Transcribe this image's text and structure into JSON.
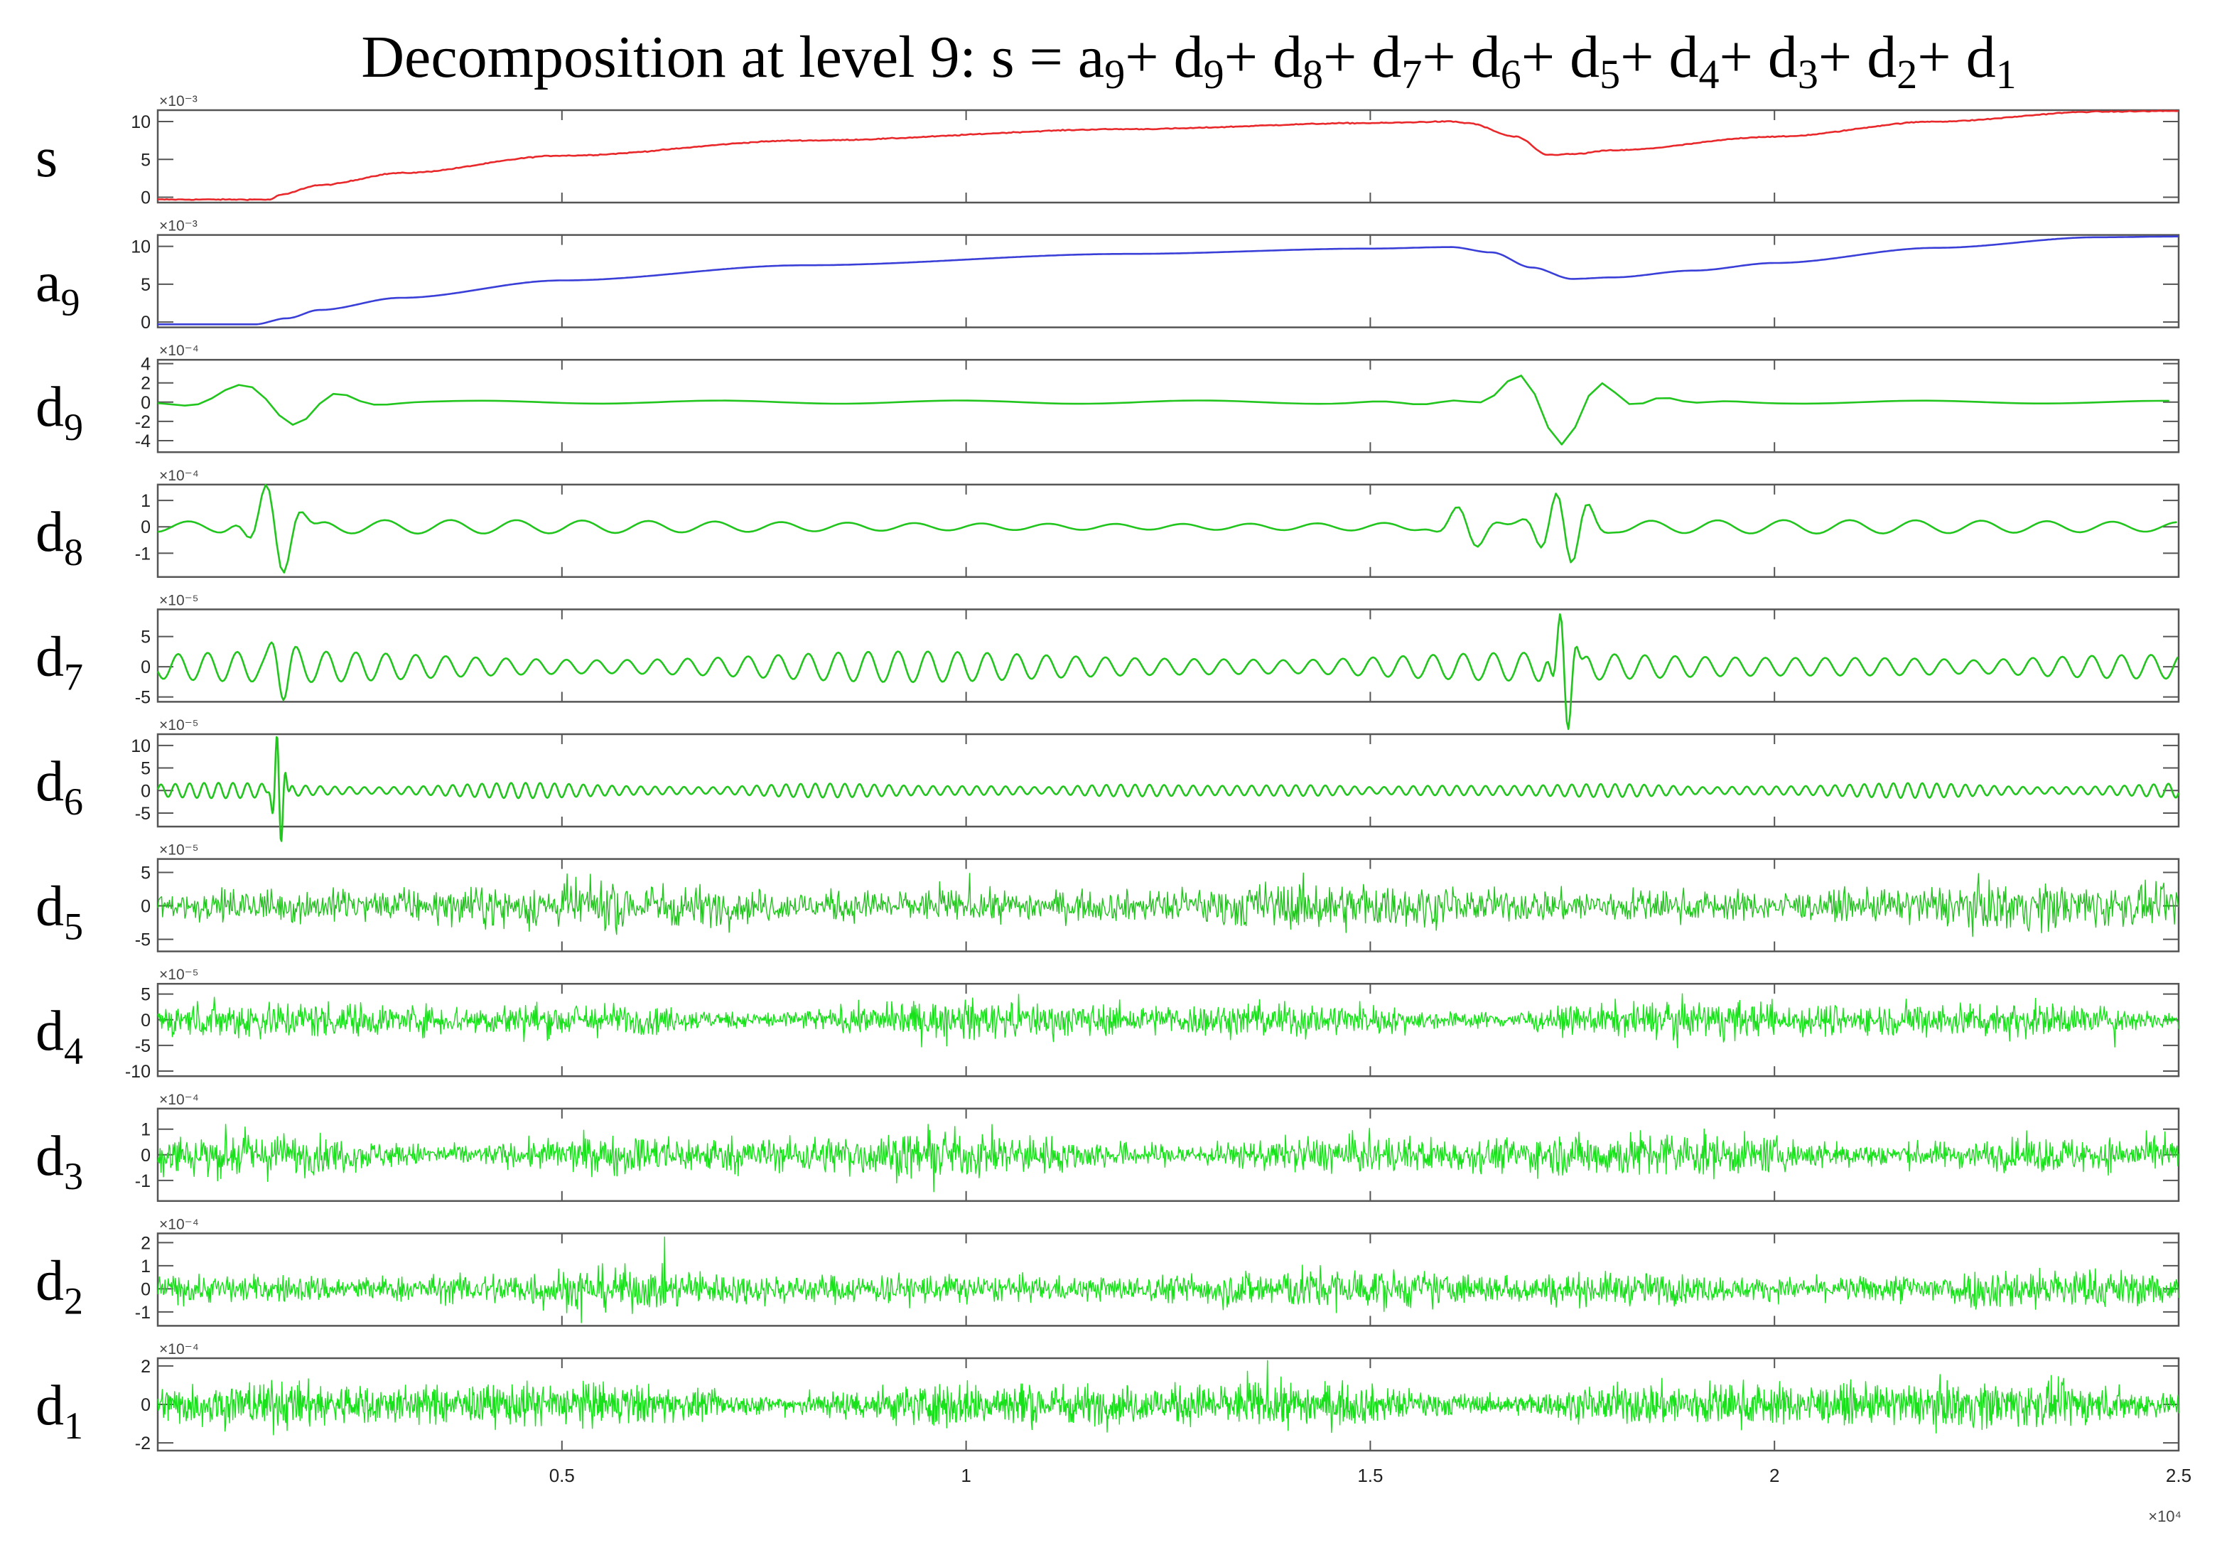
{
  "title": {
    "lead": "Decomposition at level 9: s = a",
    "parts": [
      {
        "sub": "9",
        "after": "+ d"
      },
      {
        "sub": "9",
        "after": "+ d"
      },
      {
        "sub": "8",
        "after": "+ d"
      },
      {
        "sub": "7",
        "after": "+ d"
      },
      {
        "sub": "6",
        "after": "+ d"
      },
      {
        "sub": "5",
        "after": "+ d"
      },
      {
        "sub": "4",
        "after": "+ d"
      },
      {
        "sub": "3",
        "after": "+ d"
      },
      {
        "sub": "2",
        "after": "+ d"
      },
      {
        "sub": "1",
        "after": ""
      }
    ]
  },
  "colors": {
    "signal": "#e8282a",
    "approximation": "#3a3fd8",
    "detail": "#22c41e",
    "detail_bright": "#18e01a",
    "axis": "#555555",
    "text": "#000000"
  },
  "chart_data": {
    "type": "line",
    "xlim": [
      0,
      25000
    ],
    "x_exponent": "×10⁴",
    "x_ticks": [
      5000,
      10000,
      15000,
      20000,
      25000
    ],
    "x_tick_labels": [
      "0.5",
      "1",
      "1.5",
      "2",
      "2.5"
    ],
    "grid": false,
    "panels": [
      {
        "label": "s",
        "sub": "",
        "exponent": "×10⁻³",
        "ylim": [
          -0.7,
          11.5
        ],
        "yticks": [
          0,
          5,
          10
        ],
        "ytick_labels": [
          "0",
          "5",
          "10"
        ],
        "color": "signal",
        "kind": "trend",
        "x": [
          0,
          1000,
          1400,
          1500,
          2000,
          3000,
          5000,
          8000,
          12000,
          15000,
          16000,
          16200,
          16800,
          17200,
          17500,
          18000,
          20000,
          22000,
          24000,
          25000
        ],
        "y": [
          -0.3,
          -0.3,
          -0.3,
          0.3,
          1.6,
          3.2,
          5.5,
          7.5,
          9.0,
          9.8,
          10.0,
          9.8,
          8.0,
          5.6,
          5.7,
          6.2,
          8.0,
          10.0,
          11.3,
          11.4
        ]
      },
      {
        "label": "a",
        "sub": "9",
        "exponent": "×10⁻³",
        "ylim": [
          -0.7,
          11.5
        ],
        "yticks": [
          0,
          5,
          10
        ],
        "ytick_labels": [
          "0",
          "5",
          "10"
        ],
        "color": "approximation",
        "kind": "trend",
        "x": [
          0,
          1000,
          1200,
          1600,
          2000,
          3000,
          5000,
          8000,
          12000,
          15000,
          16000,
          16500,
          17000,
          17500,
          18000,
          19000,
          20000,
          22000,
          24000,
          25000
        ],
        "y": [
          -0.3,
          -0.3,
          -0.3,
          0.5,
          1.6,
          3.2,
          5.5,
          7.5,
          9.0,
          9.7,
          9.9,
          9.2,
          7.2,
          5.7,
          5.9,
          6.8,
          7.8,
          9.8,
          11.2,
          11.3
        ]
      },
      {
        "label": "d",
        "sub": "9",
        "exponent": "×10⁻⁴",
        "ylim": [
          -5.2,
          4.4
        ],
        "yticks": [
          -4,
          -2,
          0,
          2,
          4
        ],
        "ytick_labels": [
          "-4",
          "-2",
          "0",
          "2",
          "4"
        ],
        "color": "detail",
        "kind": "smooth",
        "amp": 0.12,
        "period": 3000,
        "bursts": [
          [
            1100,
            2.3,
            480,
            1200
          ],
          [
            1500,
            2.8,
            550,
            1100
          ],
          [
            16700,
            2.5,
            700,
            1400
          ],
          [
            17200,
            5.0,
            700,
            1200
          ],
          [
            17900,
            2.0,
            600,
            1000
          ]
        ]
      },
      {
        "label": "d",
        "sub": "8",
        "exponent": "×10⁻⁴",
        "ylim": [
          -1.9,
          1.6
        ],
        "yticks": [
          -1,
          0,
          1
        ],
        "ytick_labels": [
          "-1",
          "0",
          "1"
        ],
        "color": "detail",
        "kind": "smooth",
        "amp": 0.18,
        "period": 820,
        "bursts": [
          [
            1450,
            1.7,
            230,
            450
          ],
          [
            16200,
            0.7,
            250,
            500
          ],
          [
            17400,
            1.6,
            230,
            420
          ]
        ]
      },
      {
        "label": "d",
        "sub": "7",
        "exponent": "×10⁻⁵",
        "ylim": [
          -5.8,
          9.5
        ],
        "yticks": [
          -5,
          0,
          5
        ],
        "ytick_labels": [
          "-5",
          "0",
          "5"
        ],
        "color": "detail",
        "kind": "smooth",
        "amp": 1.8,
        "period": 370,
        "bursts": [
          [
            1500,
            3.8,
            120,
            300
          ],
          [
            17400,
            9.0,
            110,
            200
          ]
        ]
      },
      {
        "label": "d",
        "sub": "6",
        "exponent": "×10⁻⁵",
        "ylim": [
          -8.0,
          12.5
        ],
        "yticks": [
          -5,
          0,
          5,
          10
        ],
        "ytick_labels": [
          "-5",
          "0",
          "5",
          "10"
        ],
        "color": "detail",
        "kind": "smooth",
        "amp": 1.2,
        "period": 180,
        "bursts": [
          [
            1500,
            12.0,
            60,
            110
          ]
        ]
      },
      {
        "label": "d",
        "sub": "5",
        "exponent": "×10⁻⁵",
        "ylim": [
          -6.8,
          7.0
        ],
        "yticks": [
          -5,
          0,
          5
        ],
        "ytick_labels": [
          "-5",
          "0",
          "5"
        ],
        "color": "detail",
        "kind": "noise",
        "amp": 3.0,
        "step": 12
      },
      {
        "label": "d",
        "sub": "4",
        "exponent": "×10⁻⁵",
        "ylim": [
          -11.0,
          7.0
        ],
        "yticks": [
          -10,
          -5,
          0,
          5
        ],
        "ytick_labels": [
          "-10",
          "-5",
          "0",
          "5"
        ],
        "color": "detail_bright",
        "kind": "noise",
        "amp": 3.2,
        "step": 10
      },
      {
        "label": "d",
        "sub": "3",
        "exponent": "×10⁻⁴",
        "ylim": [
          -1.8,
          1.8
        ],
        "yticks": [
          -1,
          0,
          1
        ],
        "ytick_labels": [
          "-1",
          "0",
          "1"
        ],
        "color": "detail_bright",
        "kind": "noise",
        "amp": 0.75,
        "step": 10
      },
      {
        "label": "d",
        "sub": "2",
        "exponent": "×10⁻⁴",
        "ylim": [
          -1.6,
          2.4
        ],
        "yticks": [
          -1,
          0,
          1,
          2
        ],
        "ytick_labels": [
          "-1",
          "0",
          "1",
          "2"
        ],
        "color": "detail_bright",
        "kind": "noise",
        "amp": 0.75,
        "step": 10
      },
      {
        "label": "d",
        "sub": "1",
        "exponent": "×10⁻⁴",
        "ylim": [
          -2.4,
          2.4
        ],
        "yticks": [
          -2,
          0,
          2
        ],
        "ytick_labels": [
          "-2",
          "0",
          "2"
        ],
        "color": "detail_bright",
        "kind": "noise",
        "amp": 1.05,
        "step": 8
      }
    ]
  }
}
